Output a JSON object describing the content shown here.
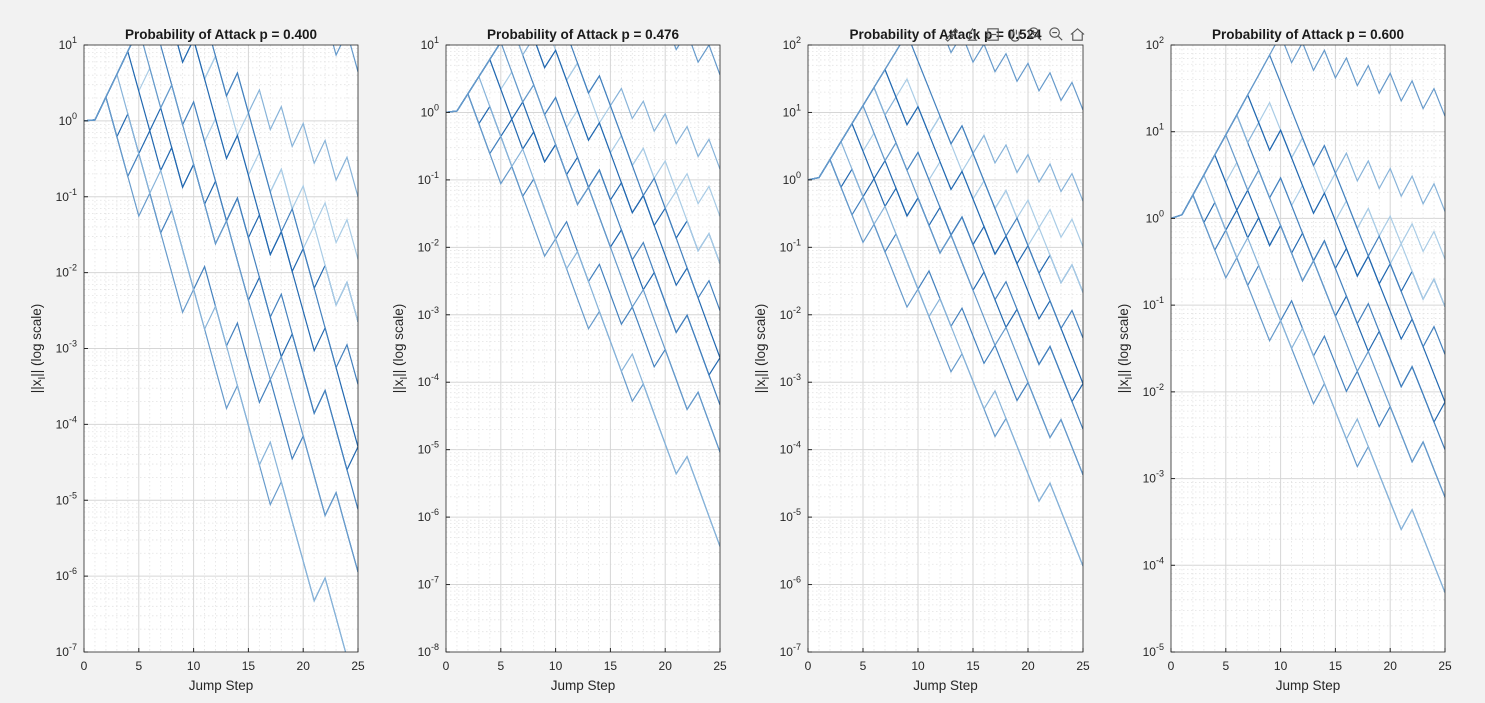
{
  "figure": {
    "toolbar": [
      {
        "name": "brush-icon",
        "tip": "Brush"
      },
      {
        "name": "data-tips-icon",
        "tip": "Data Tips"
      },
      {
        "name": "restore-view-icon",
        "tip": "Restore View"
      },
      {
        "name": "pan-icon",
        "tip": "Pan"
      },
      {
        "name": "zoom-in-icon",
        "tip": "Zoom In"
      },
      {
        "name": "zoom-out-icon",
        "tip": "Zoom Out"
      },
      {
        "name": "home-icon",
        "tip": "Home"
      }
    ],
    "colors": {
      "background": "#f2f2f2",
      "axes": "#ffffff",
      "line_dark": "#2268b0",
      "line_light": "#a9cce6",
      "grid": "#d6d6d6"
    }
  },
  "chart_data": [
    {
      "type": "line",
      "title": "Probability of Attack p = 0.400",
      "xlabel": "Jump Step",
      "ylabel": "||x",
      "ylabel_sub": "I",
      "ylabel_rest": "|| (log scale)",
      "yscale": "log",
      "xlim": [
        0,
        25
      ],
      "ylim_exp": [
        -7,
        1
      ],
      "xticks": [
        0,
        5,
        10,
        15,
        20,
        25
      ],
      "x0": 0,
      "y0": 1.0,
      "first_jump": 1.03,
      "growth_per_step": 2.0,
      "decay_per_step": 0.3,
      "num_series": 13,
      "grid": "major-and-minor"
    },
    {
      "type": "line",
      "title": "Probability of Attack p = 0.476",
      "xlabel": "Jump Step",
      "ylabel": "||x",
      "ylabel_sub": "I",
      "ylabel_rest": "|| (log scale)",
      "yscale": "log",
      "xlim": [
        0,
        25
      ],
      "ylim_exp": [
        -8,
        1
      ],
      "xticks": [
        0,
        5,
        10,
        15,
        20,
        25
      ],
      "x0": 0,
      "y0": 1.0,
      "first_jump": 1.05,
      "growth_per_step": 1.8,
      "decay_per_step": 0.36,
      "num_series": 13,
      "grid": "major-and-minor"
    },
    {
      "type": "line",
      "title": "Probability of Attack p = 0.524",
      "xlabel": "Jump Step",
      "ylabel": "||x",
      "ylabel_sub": "I",
      "ylabel_rest": "|| (log scale)",
      "yscale": "log",
      "xlim": [
        0,
        25
      ],
      "ylim_exp": [
        -7,
        2
      ],
      "xticks": [
        0,
        5,
        10,
        15,
        20,
        25
      ],
      "x0": 0,
      "y0": 1.0,
      "first_jump": 1.08,
      "growth_per_step": 1.85,
      "decay_per_step": 0.39,
      "num_series": 13,
      "grid": "major-and-minor"
    },
    {
      "type": "line",
      "title": "Probability of Attack p = 0.600",
      "xlabel": "Jump Step",
      "ylabel": "||x",
      "ylabel_sub": "I",
      "ylabel_rest": "|| (log scale)",
      "yscale": "log",
      "xlim": [
        0,
        25
      ],
      "ylim_exp": [
        -5,
        2
      ],
      "xticks": [
        0,
        5,
        10,
        15,
        20,
        25
      ],
      "x0": 0,
      "y0": 1.0,
      "first_jump": 1.1,
      "growth_per_step": 1.7,
      "decay_per_step": 0.48,
      "num_series": 13,
      "grid": "major-and-minor"
    }
  ]
}
